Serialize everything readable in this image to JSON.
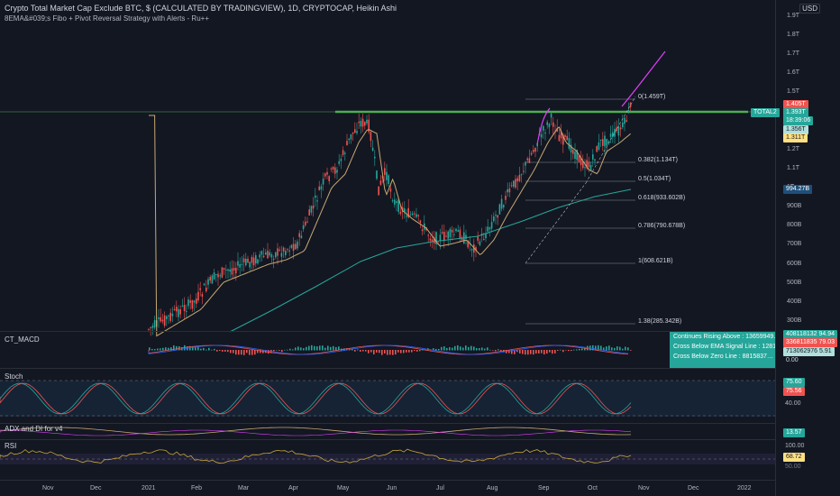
{
  "header": {
    "title": "Crypto Total Market Cap Exclude BTC, $ (CALCULATED BY TRADINGVIEW), 1D, CRYPTOCAP, Heikin Ashi",
    "indicator": "8EMA&#039;s Fibo + Pivot Reversal Strategy with Alerts - Ru++",
    "currency": "USD"
  },
  "price_axis": [
    "1.9T",
    "1.8T",
    "1.7T",
    "1.6T",
    "1.5T",
    "1.4T",
    "1.3T",
    "1.2T",
    "1.1T",
    "1T",
    "900B",
    "800B",
    "700B",
    "600B",
    "500B",
    "400B",
    "300B"
  ],
  "price_tags": {
    "symbol": "TOTAL2",
    "high": "1.405T",
    "last": "1.393T",
    "countdown": "18:39:06",
    "t3": "1.356T",
    "t4": "1.311T",
    "ema": "994.27B"
  },
  "fib_levels": [
    {
      "label": "0(1.459T)"
    },
    {
      "label": "0.382(1.134T)"
    },
    {
      "label": "0.5(1.034T)"
    },
    {
      "label": "0.618(933.602B)"
    },
    {
      "label": "0.786(790.678B)"
    },
    {
      "label": "1(608.621B)"
    },
    {
      "label": "1.38(285.342B)"
    }
  ],
  "panes": {
    "macd": {
      "name": "CT_MACD",
      "v1": "408118132 94.94",
      "v2": "336811835 79.03",
      "v3": "713062976 5.91",
      "v4": "0.00"
    },
    "alerts": [
      "Continues Rising Above : 13659949…",
      "Cross Below EMA Signal Line : 1281456…",
      "Cross Below Zero Line : 8815837…"
    ],
    "stoch": {
      "name": "Stoch",
      "k": "75.60",
      "d": "75.56",
      "level": "40.00"
    },
    "adx": {
      "name": "ADX and DI for v4",
      "value": "13.57"
    },
    "rsi": {
      "name": "RSI",
      "top": "100.00",
      "value": "68.72",
      "level": "50.00"
    }
  },
  "time_axis": [
    "Nov",
    "Dec",
    "2021",
    "Feb",
    "Mar",
    "Apr",
    "May",
    "Jun",
    "Jul",
    "Aug",
    "Sep",
    "Oct",
    "Nov",
    "Dec",
    "2022"
  ],
  "colors": {
    "bg": "#131722",
    "up": "#26a69a",
    "down": "#ef5350",
    "green_line": "#4caf50",
    "ema_teal": "#26a69a",
    "magenta": "#e040fb"
  }
}
